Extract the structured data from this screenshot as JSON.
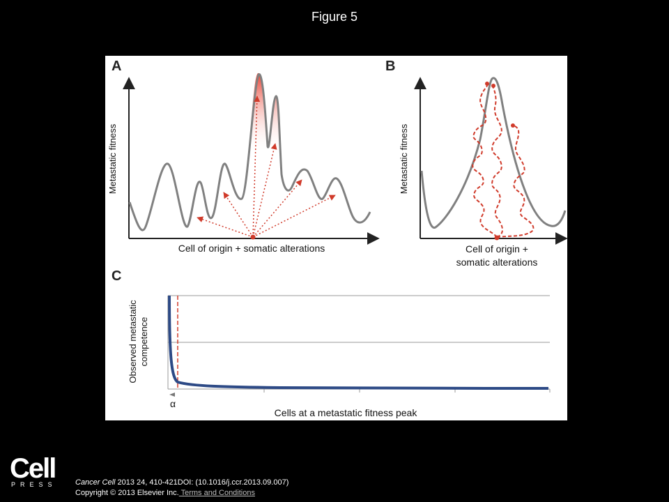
{
  "slide": {
    "title": "Figure 5"
  },
  "figure": {
    "panel_a": {
      "letter": "A",
      "ylabel": "Metastatic fitness",
      "xlabel": "Cell of origin + somatic alterations"
    },
    "panel_b": {
      "letter": "B",
      "ylabel": "Metastatic fitness",
      "xlabel_line1": "Cell of origin +",
      "xlabel_line2": "somatic alterations"
    },
    "panel_c": {
      "letter": "C",
      "ylabel_line1": "Observed metastatic",
      "ylabel_line2": "competence",
      "xlabel": "Cells at a metastatic fitness peak",
      "alpha_label": "α"
    },
    "colors": {
      "curve": "#808080",
      "walk": "#d03a2a",
      "decay": "#2d4a86",
      "threshold": "#d03a2a"
    }
  },
  "footer": {
    "logo_word": "Cell",
    "logo_sub": "PRESS",
    "journal": "Cancer Cell",
    "citation_rest": " 2013 24, 410-421DOI: (10.1016/j.ccr.2013.09.007)",
    "copyright": "Copyright © 2013 Elsevier Inc.",
    "terms_link": " Terms and Conditions"
  }
}
